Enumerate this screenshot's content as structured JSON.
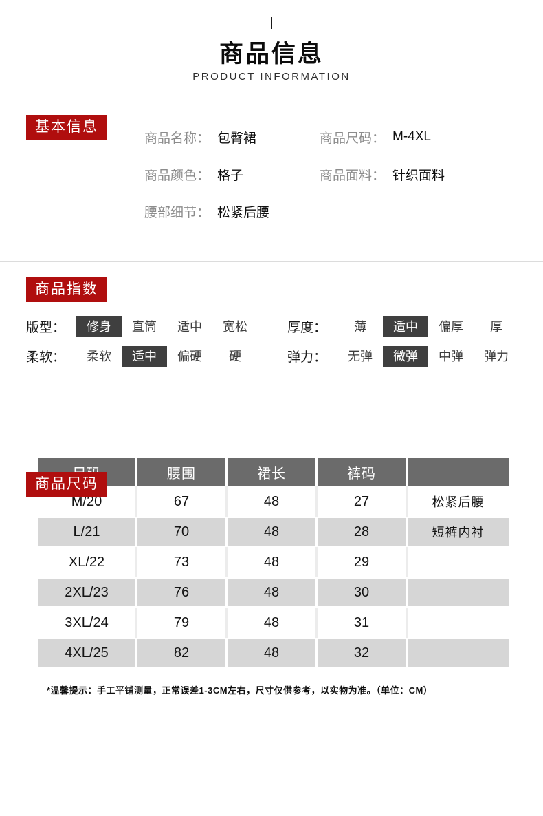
{
  "header": {
    "title": "商品信息",
    "subtitle": "PRODUCT INFORMATION"
  },
  "basic_info": {
    "badge": "基本信息",
    "fields": [
      {
        "label": "商品名称：",
        "value": "包臀裙"
      },
      {
        "label": "商品尺码：",
        "value": "M-4XL"
      },
      {
        "label": "商品颜色：",
        "value": "格子"
      },
      {
        "label": "商品面料：",
        "value": "针织面料"
      },
      {
        "label": "腰部细节：",
        "value": "松紧后腰"
      }
    ]
  },
  "index_section": {
    "badge": "商品指数",
    "rows": [
      {
        "label": "版型：",
        "options": [
          "修身",
          "直筒",
          "适中",
          "宽松"
        ],
        "selected": 0
      },
      {
        "label": "厚度：",
        "options": [
          "薄",
          "适中",
          "偏厚",
          "厚"
        ],
        "selected": 1
      },
      {
        "label": "柔软：",
        "options": [
          "柔软",
          "适中",
          "偏硬",
          "硬"
        ],
        "selected": 1
      },
      {
        "label": "弹力：",
        "options": [
          "无弹",
          "微弹",
          "中弹",
          "弹力"
        ],
        "selected": 1
      }
    ]
  },
  "size_section": {
    "badge": "商品尺码",
    "table": {
      "headers": [
        "尺码",
        "腰围",
        "裙长",
        "裤码",
        ""
      ],
      "rows": [
        [
          "M/20",
          "67",
          "48",
          "27",
          "松紧后腰"
        ],
        [
          "L/21",
          "70",
          "48",
          "28",
          "短裤内衬"
        ],
        [
          "XL/22",
          "73",
          "48",
          "29",
          ""
        ],
        [
          "2XL/23",
          "76",
          "48",
          "30",
          ""
        ],
        [
          "3XL/24",
          "79",
          "48",
          "31",
          ""
        ],
        [
          "4XL/25",
          "82",
          "48",
          "32",
          ""
        ]
      ]
    },
    "note": "*温馨提示：手工平铺测量，正常误差1-3CM左右，尺寸仅供参考，以实物为准。（单位：CM）"
  },
  "colors": {
    "accent_red": "#b00e0e",
    "table_header_bg": "#6b6b6b",
    "table_alt_row_bg": "#d6d6d6",
    "selected_chip_bg": "#3f3f3f",
    "divider": "#dcdcdc"
  }
}
